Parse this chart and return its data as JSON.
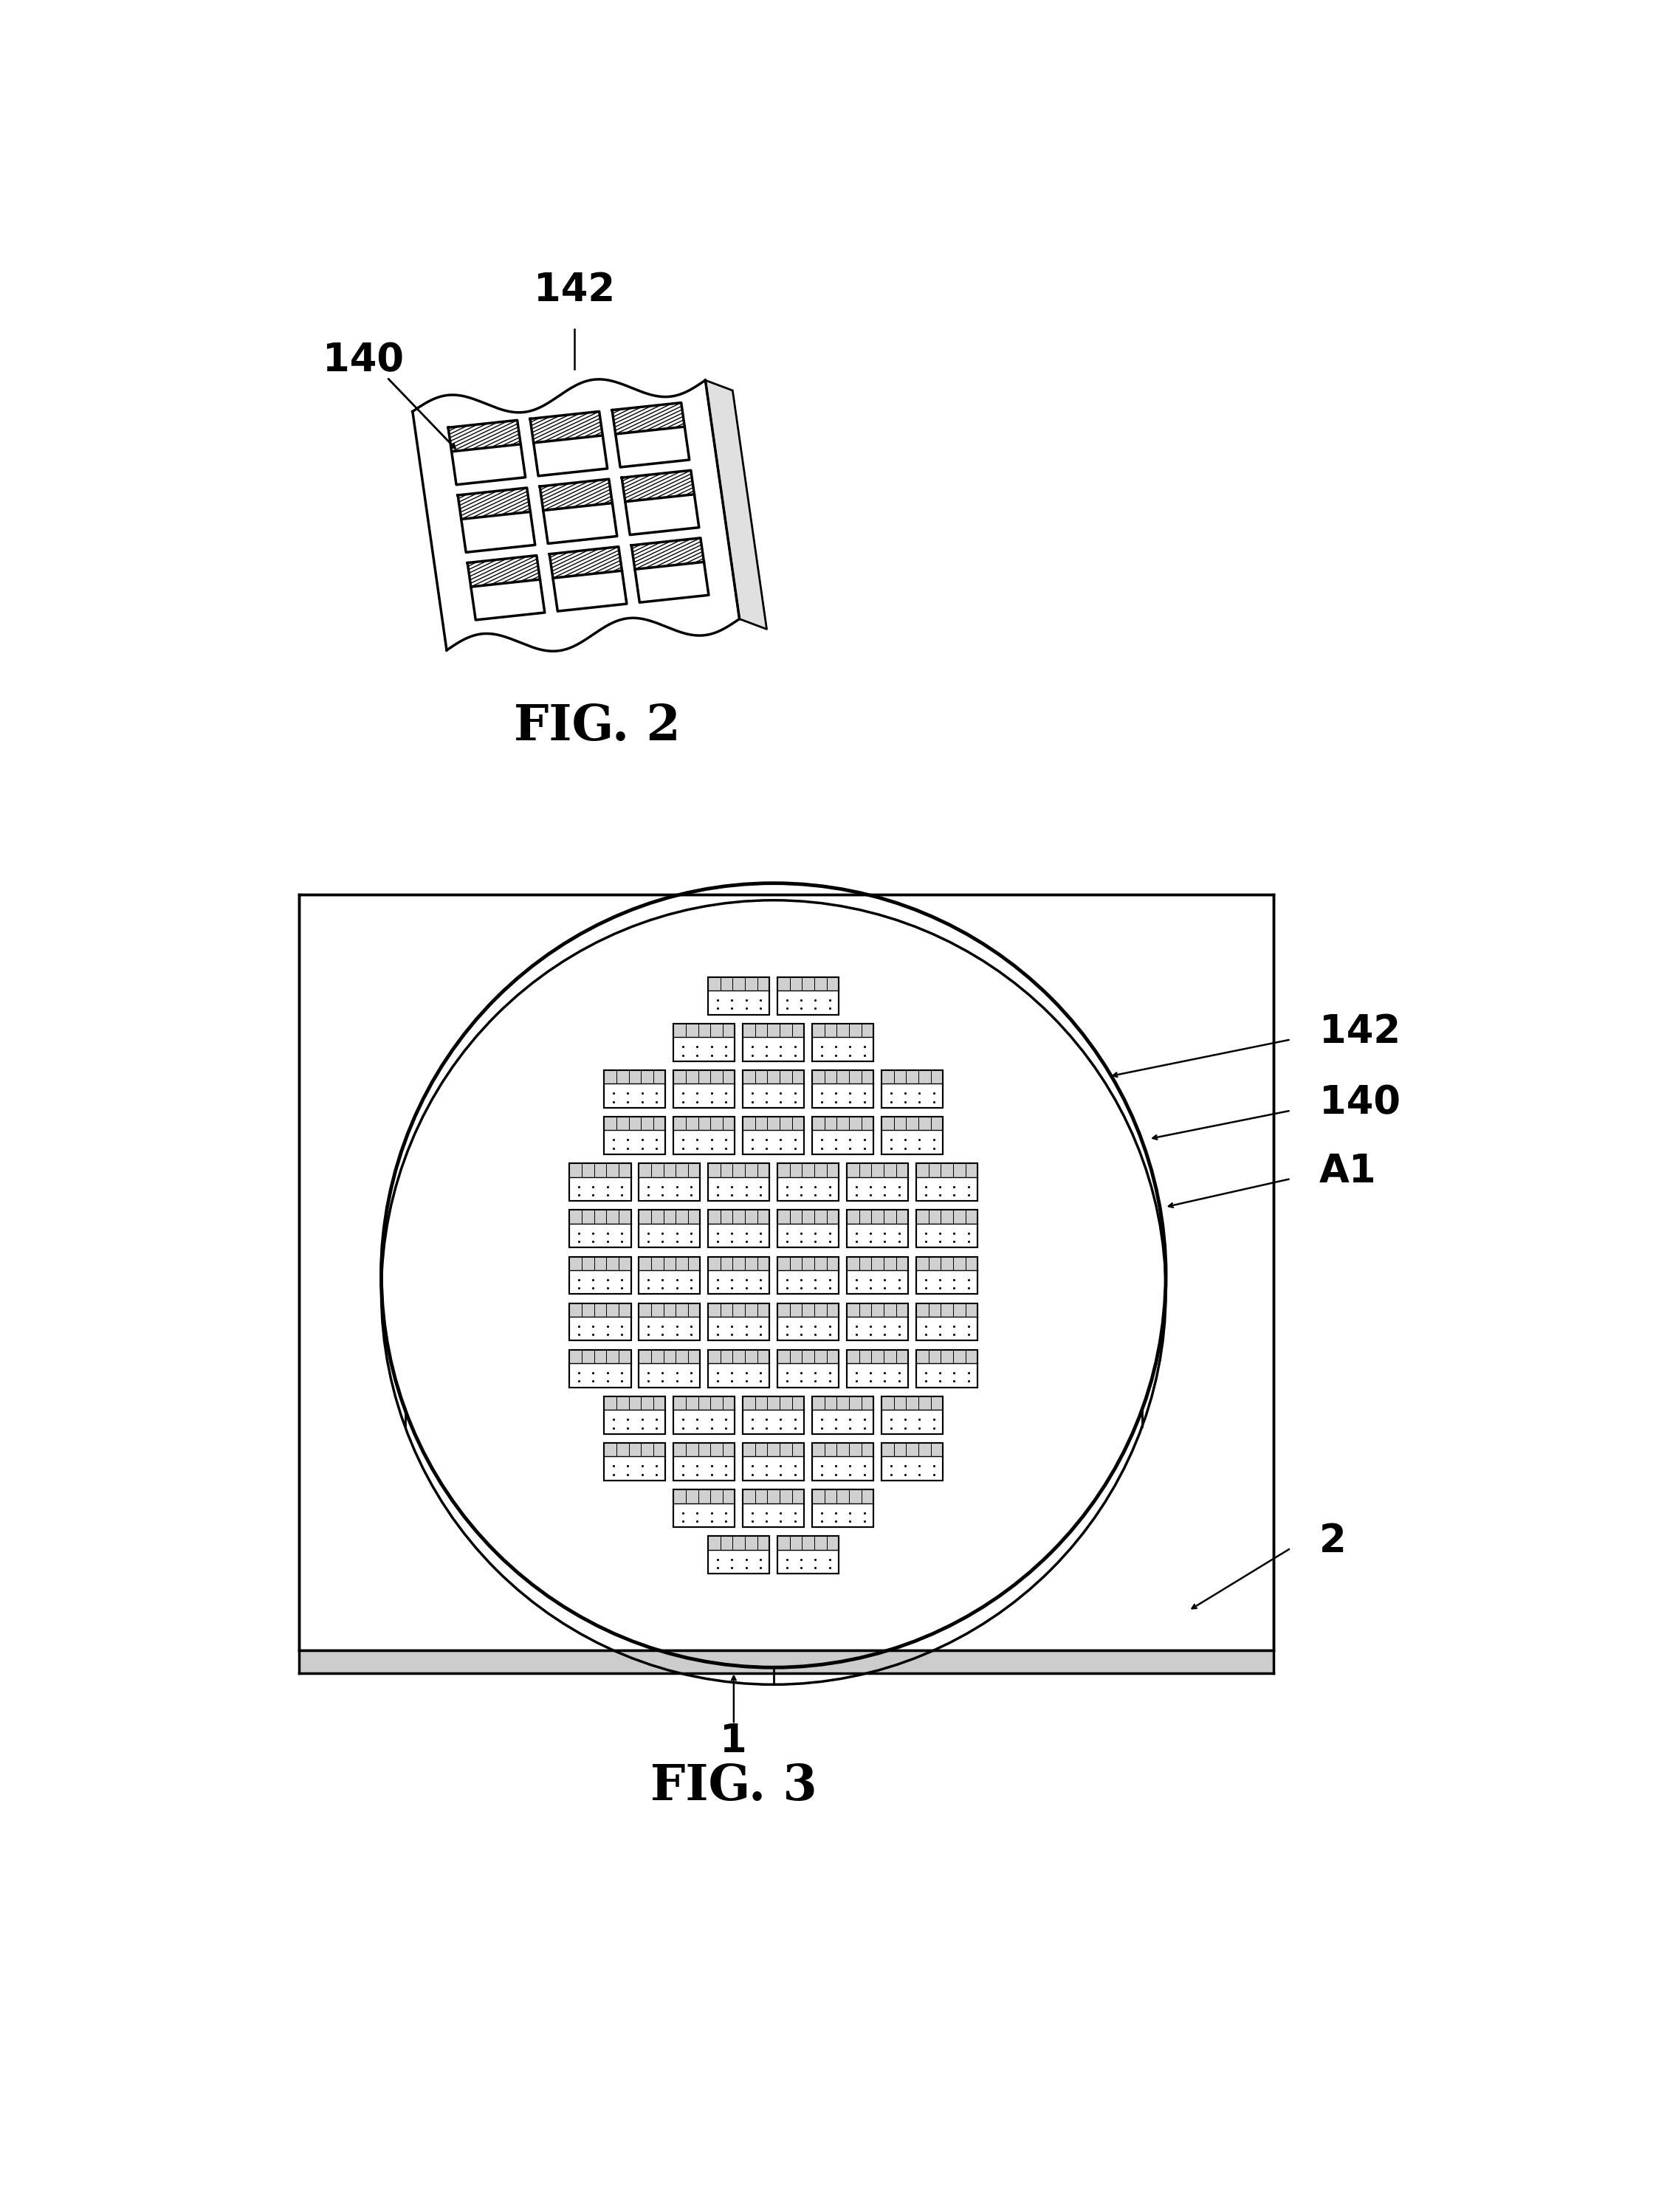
{
  "fig2_label": "FIG. 2",
  "fig3_label": "FIG. 3",
  "label_140": "140",
  "label_142": "142",
  "label_A1": "A1",
  "label_2": "2",
  "label_1": "1",
  "bg_color": "#ffffff",
  "line_color": "#000000"
}
